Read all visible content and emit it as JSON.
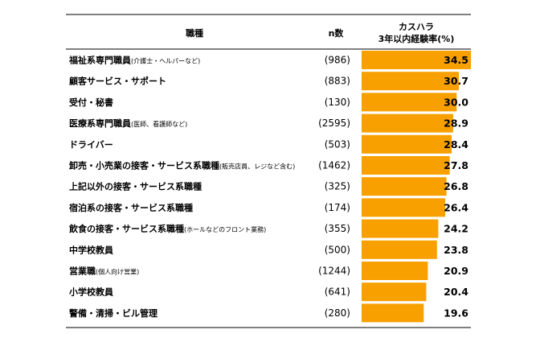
{
  "chart_data": {
    "type": "bar",
    "orientation": "horizontal",
    "headers": {
      "occupation": "職種",
      "n": "n数",
      "value_line1": "カスハラ",
      "value_line2": "3年以内経験率(%)"
    },
    "rows": [
      {
        "main": "福祉系専門職員",
        "sub": "(介護士・ヘルパーなど)",
        "n": "(986)",
        "value": 34.5
      },
      {
        "main": "顧客サービス・サポート",
        "sub": "",
        "n": "(883)",
        "value": 30.7
      },
      {
        "main": "受付・秘書",
        "sub": "",
        "n": "(130)",
        "value": 30.0
      },
      {
        "main": "医療系専門職員",
        "sub": "(医師、看護師など)",
        "n": "(2595)",
        "value": 28.9
      },
      {
        "main": "ドライバー",
        "sub": "",
        "n": "(503)",
        "value": 28.4
      },
      {
        "main": "卸売・小売業の接客・サービス系職種",
        "sub": "(販売店員、レジなど含む)",
        "n": "(1462)",
        "value": 27.8
      },
      {
        "main": "上記以外の接客・サービス系職種",
        "sub": "",
        "n": "(325)",
        "value": 26.8
      },
      {
        "main": "宿泊系の接客・サービス系職種",
        "sub": "",
        "n": "(174)",
        "value": 26.4
      },
      {
        "main": "飲食の接客・サービス系職種",
        "sub": "(ホールなどのフロント業務)",
        "n": "(355)",
        "value": 24.2
      },
      {
        "main": "中学校教員",
        "sub": "",
        "n": "(500)",
        "value": 23.8
      },
      {
        "main": "営業職",
        "sub": "(個人向け営業)",
        "n": "(1244)",
        "value": 20.9
      },
      {
        "main": "小学校教員",
        "sub": "",
        "n": "(641)",
        "value": 20.4
      },
      {
        "main": "警備・清掃・ビル管理",
        "sub": "",
        "n": "(280)",
        "value": 19.6
      }
    ],
    "value_range": [
      0,
      34.5
    ],
    "bar_color": "#F7A000",
    "line_color": "#000000"
  }
}
